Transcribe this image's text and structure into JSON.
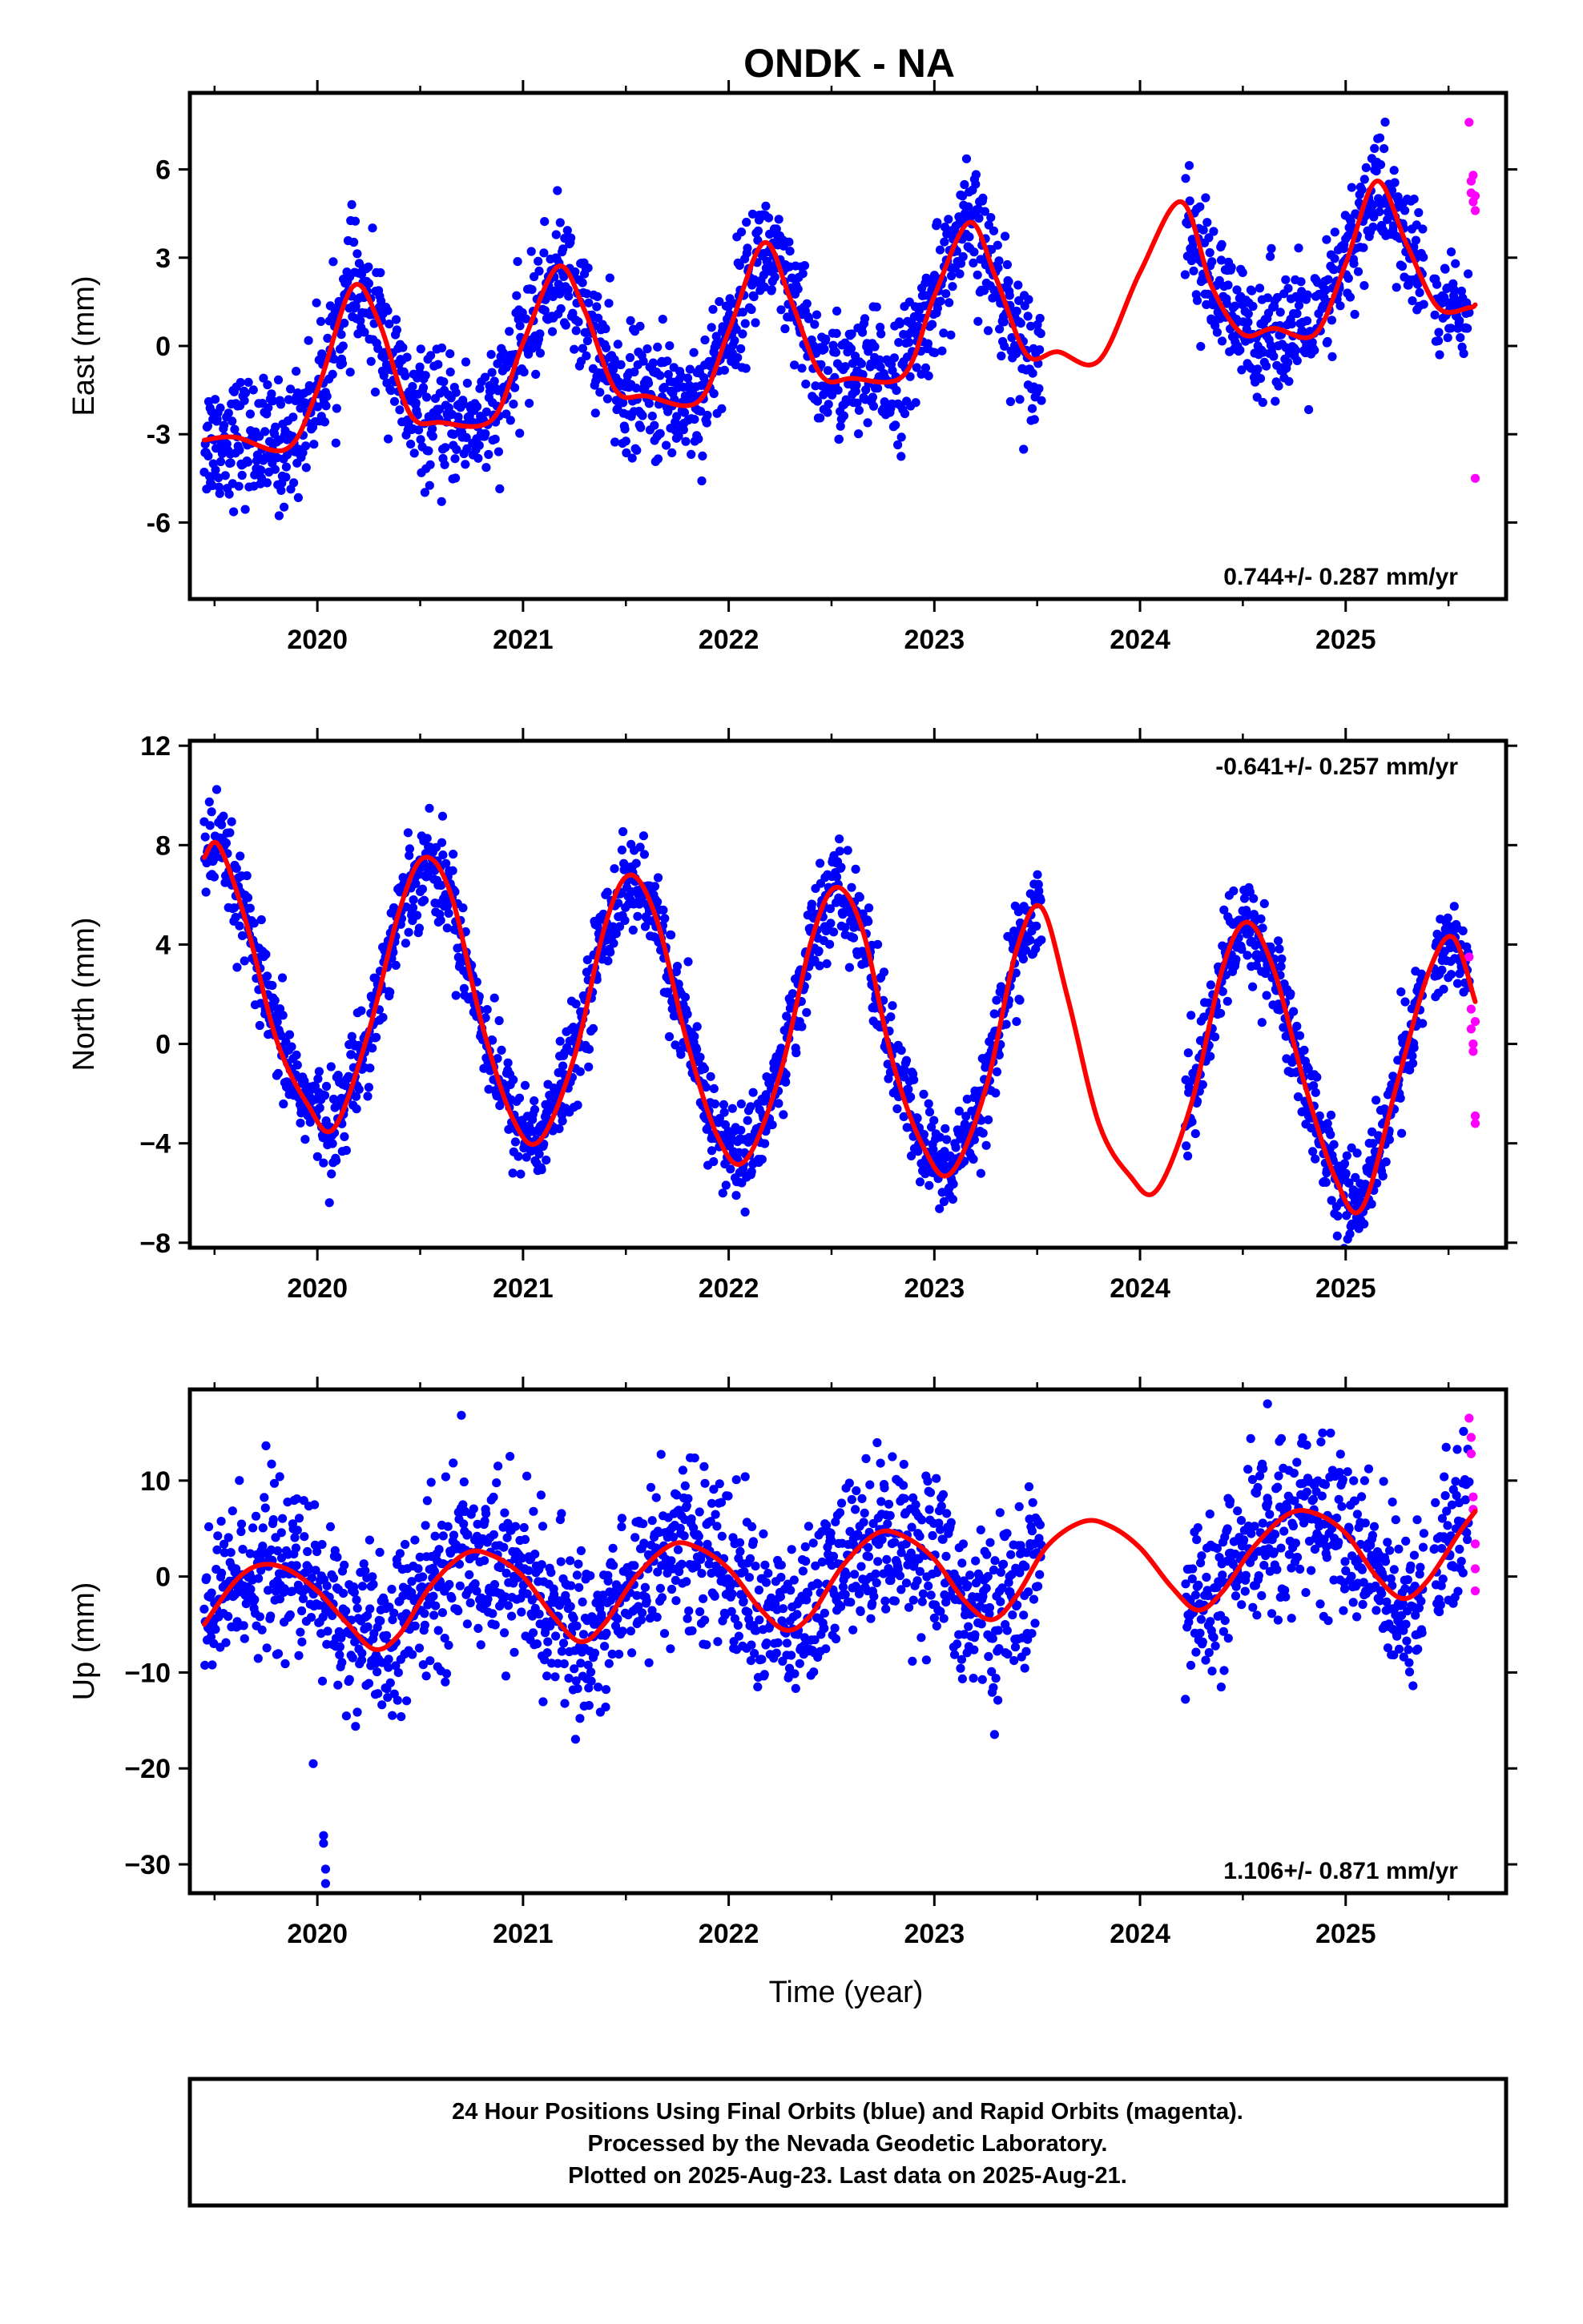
{
  "chart_data": {
    "type": "scatter",
    "title": "ONDK - NA",
    "xlabel": "Time (year)",
    "xlim": [
      2019.38,
      2025.78
    ],
    "x_ticks": [
      "2020",
      "2021",
      "2022",
      "2023",
      "2024",
      "2025"
    ],
    "colors": {
      "final": "#0000ff",
      "rapid": "#ff00ff",
      "model": "#ff0000"
    },
    "panels": [
      {
        "name": "east",
        "ylabel": "East (mm)",
        "ylim": [
          -8.6,
          8.6
        ],
        "y_ticks": [
          6,
          3,
          0,
          -3,
          -6
        ],
        "y_tick_labels": [
          "6",
          "3",
          "0",
          "-3",
          "-6"
        ],
        "rate": "0.744+/- 0.287 mm/yr",
        "rate_position": "bottom-right",
        "series": [
          {
            "name": "Final Orbits",
            "color": "#0000ff",
            "x_range": [
              2019.45,
              2023.52
            ],
            "offset": -3.5,
            "annual_amp": 2.9,
            "phase": 0.15,
            "noise": 1.05,
            "points": 1480
          },
          {
            "name": "Final Orbits",
            "color": "#0000ff",
            "x_range": [
              2024.22,
              2025.38
            ],
            "offset": 0.3,
            "annual_amp": 2.4,
            "phase": 0.15,
            "noise": 1.05,
            "points": 420
          },
          {
            "name": "Final Orbits",
            "color": "#0000ff",
            "x_range": [
              2025.43,
              2025.6
            ],
            "offset": 1.2,
            "annual_amp": 0.0,
            "phase": 0.15,
            "noise": 0.9,
            "points": 60
          },
          {
            "name": "Rapid Orbits",
            "color": "#ff00ff",
            "x": [
              2025.6,
              2025.61,
              2025.61,
              2025.62,
              2025.62,
              2025.63,
              2025.63,
              2025.63
            ],
            "y": [
              7.6,
              5.6,
              5.2,
              4.9,
              5.8,
              4.6,
              5.1,
              -4.5
            ]
          }
        ],
        "model": {
          "x": [
            2019.45,
            2019.6,
            2019.85,
            2020.0,
            2020.17,
            2020.3,
            2020.45,
            2020.6,
            2020.85,
            2021.0,
            2021.17,
            2021.3,
            2021.45,
            2021.6,
            2021.85,
            2022.0,
            2022.17,
            2022.3,
            2022.45,
            2022.6,
            2022.85,
            2023.0,
            2023.17,
            2023.3,
            2023.45,
            2023.6,
            2023.8,
            2024.0,
            2024.2,
            2024.35,
            2024.5,
            2024.65,
            2024.85,
            2025.0,
            2025.15,
            2025.3,
            2025.45,
            2025.6,
            2025.63
          ],
          "y": [
            -3.2,
            -3.1,
            -3.5,
            -1.5,
            2.0,
            0.8,
            -2.3,
            -2.6,
            -2.5,
            0.1,
            2.7,
            1.2,
            -1.5,
            -1.7,
            -1.9,
            0.5,
            3.5,
            1.6,
            -1.0,
            -1.1,
            -1.0,
            1.7,
            4.2,
            2.3,
            -0.3,
            -0.2,
            -0.5,
            2.5,
            4.9,
            2.0,
            0.4,
            0.6,
            0.4,
            2.8,
            5.6,
            3.4,
            1.3,
            1.3,
            1.4
          ]
        }
      },
      {
        "name": "north",
        "ylabel": "North (mm)",
        "ylim": [
          -8.2,
          12.2
        ],
        "y_ticks": [
          12,
          8,
          4,
          0,
          -4,
          -8
        ],
        "y_tick_labels": [
          "12",
          "8",
          "4",
          "0",
          "−4",
          "−8"
        ],
        "rate": "-0.641+/- 0.257 mm/yr",
        "rate_position": "top-right",
        "series": [
          {
            "name": "Final Orbits",
            "color": "#0000ff",
            "x_range": [
              2019.45,
              2023.52
            ],
            "offset": 2.0,
            "annual_amp": 5.6,
            "phase": 0.52,
            "noise": 0.95,
            "points": 1480
          },
          {
            "name": "Final Orbits",
            "color": "#0000ff",
            "x_range": [
              2024.22,
              2025.38
            ],
            "offset": -0.6,
            "annual_amp": 5.8,
            "phase": 0.52,
            "noise": 0.95,
            "points": 420
          },
          {
            "name": "Final Orbits",
            "color": "#0000ff",
            "x_range": [
              2025.43,
              2025.6
            ],
            "offset": 0.0,
            "annual_amp": 4.5,
            "phase": 0.52,
            "noise": 0.95,
            "points": 60
          },
          {
            "name": "Rapid Orbits",
            "color": "#ff00ff",
            "x": [
              2025.6,
              2025.61,
              2025.61,
              2025.62,
              2025.62,
              2025.63,
              2025.63,
              2025.63
            ],
            "y": [
              3.5,
              1.4,
              0.6,
              0.0,
              -0.3,
              -2.9,
              -3.2,
              0.9
            ]
          }
        ],
        "model": {
          "x": [
            2019.45,
            2019.52,
            2019.65,
            2019.8,
            2019.95,
            2020.08,
            2020.25,
            2020.4,
            2020.52,
            2020.65,
            2020.8,
            2020.95,
            2021.08,
            2021.25,
            2021.4,
            2021.52,
            2021.65,
            2021.8,
            2021.95,
            2022.08,
            2022.25,
            2022.4,
            2022.52,
            2022.65,
            2022.8,
            2022.95,
            2023.08,
            2023.25,
            2023.4,
            2023.52,
            2023.65,
            2023.8,
            2023.95,
            2024.08,
            2024.25,
            2024.4,
            2024.52,
            2024.65,
            2024.8,
            2024.95,
            2025.08,
            2025.25,
            2025.4,
            2025.52,
            2025.63
          ],
          "y": [
            7.5,
            8.0,
            5.0,
            0.2,
            -2.4,
            -3.4,
            0.5,
            5.4,
            7.5,
            6.0,
            0.8,
            -3.0,
            -3.9,
            -0.5,
            4.8,
            6.8,
            5.0,
            0.0,
            -3.8,
            -4.7,
            -1.2,
            4.1,
            6.3,
            4.6,
            -0.8,
            -4.2,
            -5.2,
            -1.8,
            3.8,
            5.5,
            1.8,
            -3.2,
            -5.3,
            -5.9,
            -2.4,
            3.0,
            4.9,
            3.0,
            -1.6,
            -5.4,
            -6.6,
            -1.6,
            2.8,
            4.3,
            1.7
          ]
        }
      },
      {
        "name": "up",
        "ylabel": "Up (mm)",
        "ylim": [
          -33.0,
          19.5
        ],
        "y_ticks": [
          10,
          0,
          -10,
          -20,
          -30
        ],
        "y_tick_labels": [
          "10",
          "0",
          "−10",
          "−20",
          "−30"
        ],
        "rate": "1.106+/- 0.871 mm/yr",
        "rate_position": "bottom-right",
        "series": [
          {
            "name": "Final Orbits",
            "color": "#0000ff",
            "x_range": [
              2019.45,
              2023.52
            ],
            "offset": -2.0,
            "annual_amp": 4.8,
            "phase": 0.78,
            "noise": 4.2,
            "points": 1480
          },
          {
            "name": "Final Orbits",
            "color": "#0000ff",
            "x_range": [
              2024.22,
              2025.38
            ],
            "offset": 1.5,
            "annual_amp": 5.0,
            "phase": 0.78,
            "noise": 4.2,
            "points": 420
          },
          {
            "name": "Final Orbits",
            "color": "#0000ff",
            "x_range": [
              2025.43,
              2025.6
            ],
            "offset": 1.5,
            "annual_amp": 3.0,
            "phase": 0.78,
            "noise": 4.2,
            "points": 60
          },
          {
            "name": "Rapid Orbits",
            "color": "#ff00ff",
            "x": [
              2025.6,
              2025.61,
              2025.61,
              2025.62,
              2025.62,
              2025.63,
              2025.63,
              2025.63
            ],
            "y": [
              16.5,
              14.5,
              12.8,
              8.3,
              7.0,
              3.4,
              -1.5,
              0.8
            ]
          },
          {
            "name": "Outliers",
            "color": "#0000ff",
            "x": [
              2020.03,
              2020.03,
              2020.04,
              2020.04,
              2019.98,
              2020.7,
              2024.62
            ],
            "y": [
              -27.0,
              -27.8,
              -30.5,
              -32.0,
              -19.5,
              16.8,
              18.0
            ]
          }
        ],
        "model": {
          "x": [
            2019.45,
            2019.6,
            2019.72,
            2019.85,
            2020.0,
            2020.15,
            2020.28,
            2020.4,
            2020.55,
            2020.72,
            2020.85,
            2021.0,
            2021.15,
            2021.28,
            2021.4,
            2021.55,
            2021.72,
            2021.85,
            2022.0,
            2022.15,
            2022.28,
            2022.4,
            2022.55,
            2022.72,
            2022.85,
            2023.0,
            2023.15,
            2023.28,
            2023.4,
            2023.55,
            2023.72,
            2023.85,
            2024.0,
            2024.15,
            2024.28,
            2024.4,
            2024.55,
            2024.72,
            2024.85,
            2025.0,
            2025.15,
            2025.28,
            2025.4,
            2025.55,
            2025.63
          ],
          "y": [
            -5.0,
            -0.5,
            1.2,
            0.8,
            -1.5,
            -5.0,
            -7.6,
            -6.0,
            -1.0,
            2.4,
            2.2,
            0.0,
            -4.2,
            -6.8,
            -4.8,
            0.0,
            3.3,
            3.0,
            0.8,
            -3.3,
            -5.6,
            -4.0,
            1.0,
            4.5,
            4.2,
            1.8,
            -2.6,
            -4.5,
            -2.0,
            3.2,
            5.7,
            5.3,
            3.0,
            -1.0,
            -3.5,
            -1.6,
            3.0,
            6.5,
            6.6,
            4.5,
            0.0,
            -2.3,
            -0.4,
            4.5,
            6.8
          ]
        }
      }
    ],
    "footer_lines": [
      "24 Hour Positions Using Final Orbits (blue) and Rapid Orbits (magenta).",
      "Processed by the Nevada Geodetic Laboratory.",
      "Plotted on 2025-Aug-23. Last data on 2025-Aug-21."
    ]
  }
}
